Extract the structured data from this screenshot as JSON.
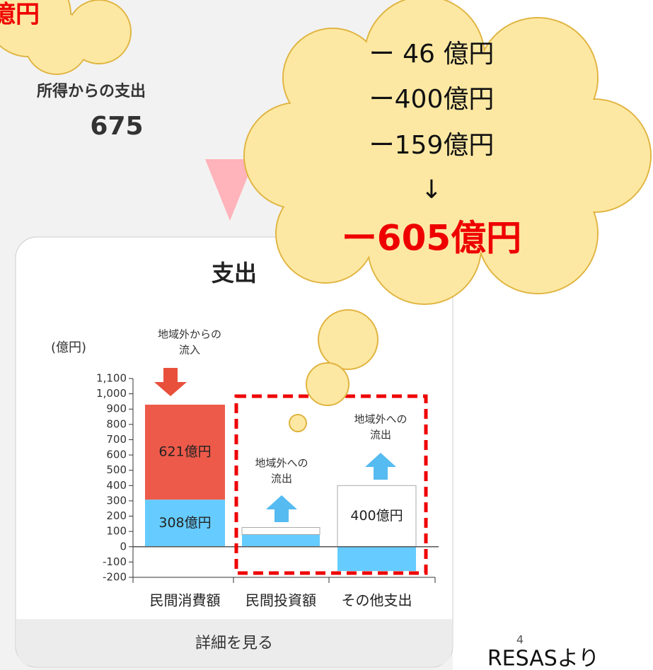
{
  "corner_cloud": "億円",
  "income_spend": {
    "label": "所得からの支出",
    "value": "675"
  },
  "cloud": {
    "lines": [
      "ー 46 億円",
      "ー400億円",
      "ー159億円",
      "↓"
    ],
    "total": "ー605億円"
  },
  "card": {
    "title": "支出",
    "unit": "(億円)",
    "footer": "詳細を見る"
  },
  "annotations": {
    "inflow": [
      "地域外からの",
      "流入"
    ],
    "outflow1": [
      "地域外への",
      "流出"
    ],
    "outflow2": [
      "地域外への",
      "流出"
    ]
  },
  "page_number": "4",
  "source": "RESASより",
  "chart_data": {
    "type": "bar",
    "stacked": true,
    "categories": [
      "民間消費額",
      "民間投資額",
      "その他支出"
    ],
    "series": [
      {
        "color": "#66ccff",
        "values": [
          308,
          80,
          -159
        ],
        "value_labels": [
          "308億円",
          null,
          null
        ]
      },
      {
        "colors": [
          "#ee5a4a",
          "#ffffff",
          "#ffffff"
        ],
        "values": [
          621,
          46,
          400
        ],
        "value_labels": [
          "621億円",
          null,
          "400億円"
        ]
      }
    ],
    "ylim": [
      -200,
      1100
    ],
    "yticks": [
      -200,
      -100,
      0,
      100,
      200,
      300,
      400,
      500,
      600,
      700,
      800,
      900,
      {
        "value": 1000,
        "label": "1,000"
      },
      {
        "value": 1100,
        "label": "1,100"
      }
    ]
  }
}
